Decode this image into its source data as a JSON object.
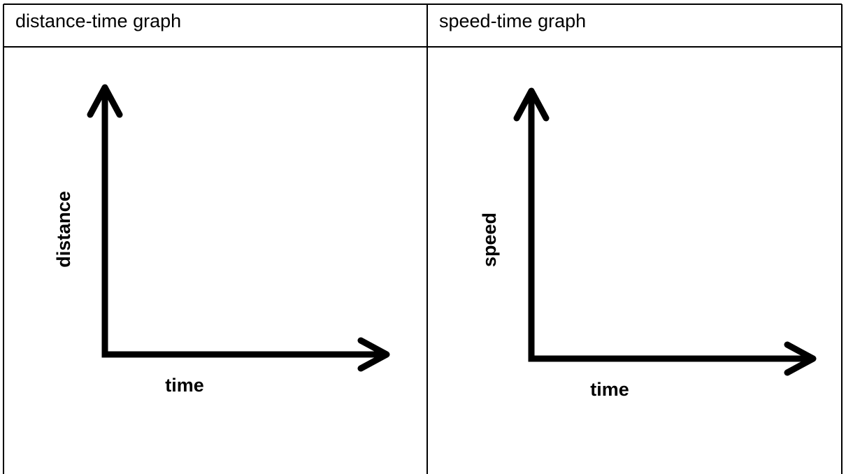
{
  "table": {
    "headers": [
      "distance-time graph",
      "speed-time graph"
    ],
    "cells": [
      {
        "y_axis_label": "distance",
        "x_axis_label": "time"
      },
      {
        "y_axis_label": "speed",
        "x_axis_label": "time"
      }
    ]
  }
}
